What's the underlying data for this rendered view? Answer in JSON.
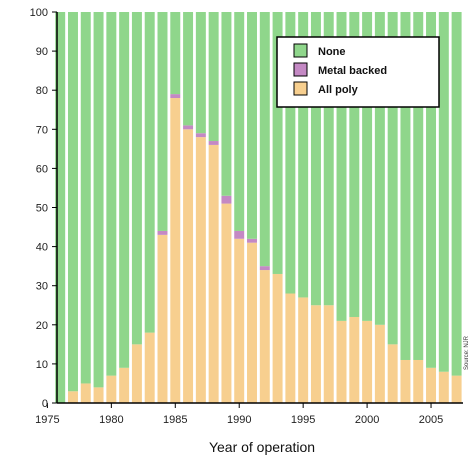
{
  "chart_data": {
    "type": "bar",
    "stacked": true,
    "percent_stacked": true,
    "xlabel": "Year of operation",
    "ylabel": "",
    "ylim": [
      0,
      100
    ],
    "yticks": [
      0,
      10,
      20,
      30,
      40,
      50,
      60,
      70,
      80,
      90,
      100
    ],
    "xticks": [
      1975,
      1980,
      1985,
      1990,
      1995,
      2000,
      2005
    ],
    "x": [
      1976,
      1977,
      1978,
      1979,
      1980,
      1981,
      1982,
      1983,
      1984,
      1985,
      1986,
      1987,
      1988,
      1989,
      1990,
      1991,
      1992,
      1993,
      1994,
      1995,
      1996,
      1997,
      1998,
      1999,
      2000,
      2001,
      2002,
      2003,
      2004,
      2005,
      2006,
      2007
    ],
    "series": [
      {
        "name": "All poly",
        "color": "#f7cf8f",
        "values": [
          0,
          3,
          5,
          4,
          7,
          9,
          15,
          18,
          43,
          78,
          70,
          68,
          66,
          51,
          42,
          41,
          34,
          33,
          28,
          27,
          25,
          25,
          21,
          22,
          21,
          20,
          15,
          11,
          11,
          9,
          8,
          7
        ]
      },
      {
        "name": "Metal backed",
        "color": "#c489c4",
        "values": [
          0,
          0,
          0,
          0,
          0,
          0,
          0,
          0,
          1,
          1,
          1,
          1,
          1,
          2,
          2,
          1,
          1,
          0,
          0,
          0,
          0,
          0,
          0,
          0,
          0,
          0,
          0,
          0,
          0,
          0,
          0,
          0
        ]
      },
      {
        "name": "None",
        "color": "#8fd68b",
        "values": [
          100,
          97,
          95,
          96,
          93,
          91,
          85,
          82,
          56,
          21,
          29,
          31,
          33,
          47,
          56,
          58,
          65,
          67,
          72,
          73,
          75,
          75,
          79,
          78,
          79,
          80,
          85,
          89,
          89,
          91,
          92,
          93
        ]
      }
    ],
    "legend": {
      "placement": "top-right",
      "entries": [
        "None",
        "Metal backed",
        "All poly"
      ]
    },
    "grid": false
  },
  "side_note": "Source: NJR"
}
